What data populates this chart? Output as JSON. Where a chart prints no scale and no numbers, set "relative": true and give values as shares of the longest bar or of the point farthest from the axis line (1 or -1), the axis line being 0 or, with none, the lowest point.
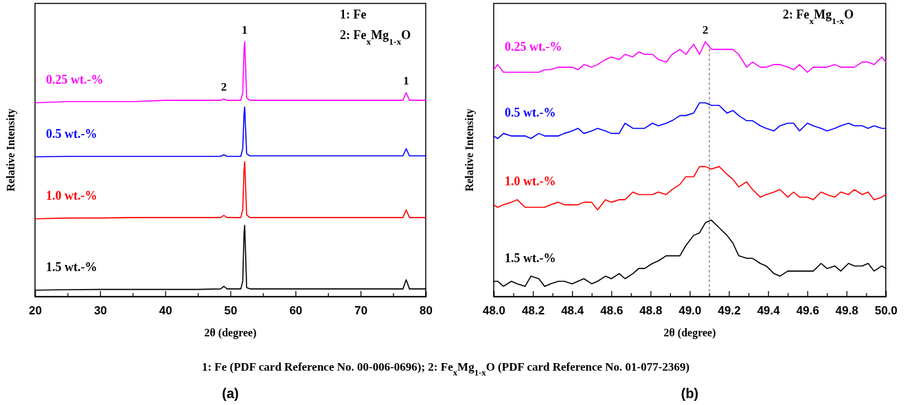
{
  "chart_data": [
    {
      "type": "line",
      "title": "(a)",
      "subtitle": "1: Fe (PDF card Reference No. 00-006-0696); 2: Fe$_{x}$Mg$_{1-x}$O (PDF card Reference No. 01-077-2369)",
      "xlabel": "2θ (degree)",
      "ylabel": "Relative Intensity",
      "relative": true,
      "x": [
        20,
        25,
        30,
        35,
        40,
        45,
        48.5,
        49,
        49.5,
        51.6,
        51.9,
        52.1,
        52.2,
        52.3,
        52.5,
        53,
        60,
        65,
        70,
        75,
        76.5,
        77,
        77.5,
        80
      ],
      "xlim": [
        20,
        80
      ],
      "xticks": [
        20,
        {
          "value": 25,
          "label": null
        },
        30,
        {
          "value": 35,
          "label": null
        },
        40,
        {
          "value": 45,
          "label": null
        },
        50,
        {
          "value": 55,
          "label": null
        },
        60,
        {
          "value": 65,
          "label": null
        },
        70,
        {
          "value": 75,
          "label": null
        },
        80
      ],
      "series": [
        {
          "name": "0.25 wt.-%",
          "color": "#ff00ff",
          "values": [
            0.76,
            0.765,
            0.765,
            0.765,
            0.77,
            0.77,
            0.77,
            0.775,
            0.77,
            0.77,
            0.8,
            0.97,
            1,
            0.93,
            0.78,
            0.77,
            0.77,
            0.77,
            0.77,
            0.77,
            0.77,
            0.8,
            0.77,
            0.77
          ]
        },
        {
          "name": "0.5 wt.-%",
          "color": "#0000ff",
          "values": [
            0.548,
            0.55,
            0.55,
            0.55,
            0.55,
            0.55,
            0.55,
            0.556,
            0.55,
            0.55,
            0.58,
            0.72,
            0.744,
            0.68,
            0.56,
            0.552,
            0.552,
            0.552,
            0.552,
            0.552,
            0.552,
            0.58,
            0.552,
            0.552
          ]
        },
        {
          "name": "1.0 wt.-%",
          "color": "#ff0000",
          "values": [
            0.305,
            0.308,
            0.308,
            0.31,
            0.31,
            0.31,
            0.31,
            0.318,
            0.31,
            0.31,
            0.34,
            0.5,
            0.53,
            0.46,
            0.32,
            0.31,
            0.31,
            0.31,
            0.31,
            0.31,
            0.31,
            0.34,
            0.31,
            0.31
          ]
        },
        {
          "name": "1.5 wt.-%",
          "color": "#000000",
          "values": [
            0.025,
            0.027,
            0.028,
            0.028,
            0.028,
            0.028,
            0.03,
            0.04,
            0.03,
            0.03,
            0.06,
            0.25,
            0.279,
            0.2,
            0.035,
            0.03,
            0.03,
            0.03,
            0.03,
            0.03,
            0.03,
            0.066,
            0.03,
            0.03
          ]
        }
      ],
      "annotations": [
        {
          "text": "1",
          "x": 52.2,
          "y": 1
        },
        {
          "text": "2",
          "x": 49,
          "y": 0.775
        },
        {
          "text": "1",
          "x": 77,
          "y": 0.8
        },
        "1: Fe",
        "2: Fe$_{x}$Mg$_{1-x}$O"
      ]
    },
    {
      "type": "line",
      "title": "(b)",
      "xlabel": "2θ (degree)",
      "ylabel": "Relative Intensity",
      "relative": true,
      "x": [
        48.0,
        48.02,
        48.05,
        48.09,
        48.12,
        48.16,
        48.19,
        48.23,
        48.26,
        48.29,
        48.33,
        48.36,
        48.4,
        48.43,
        48.46,
        48.5,
        48.53,
        48.57,
        48.6,
        48.64,
        48.67,
        48.71,
        48.74,
        48.77,
        48.81,
        48.84,
        48.88,
        48.91,
        48.95,
        48.98,
        49.02,
        49.05,
        49.08,
        49.11,
        49.15,
        49.19,
        49.22,
        49.25,
        49.29,
        49.32,
        49.36,
        49.39,
        49.43,
        49.46,
        49.5,
        49.53,
        49.56,
        49.6,
        49.63,
        49.67,
        49.7,
        49.74,
        49.77,
        49.81,
        49.84,
        49.88,
        49.91,
        49.94,
        49.98,
        50.0
      ],
      "xlim": [
        48,
        50
      ],
      "xticks": [
        {
          "value": 48,
          "label": "48.0"
        },
        {
          "value": 48.1,
          "label": null
        },
        48.2,
        {
          "value": 48.3,
          "label": null
        },
        48.4,
        {
          "value": 48.5,
          "label": null
        },
        48.6,
        {
          "value": 48.7,
          "label": null
        },
        48.8,
        {
          "value": 48.9,
          "label": null
        },
        {
          "value": 49,
          "label": "49.0"
        },
        {
          "value": 49.1,
          "label": null
        },
        49.2,
        {
          "value": 49.3,
          "label": null
        },
        49.4,
        {
          "value": 49.5,
          "label": null
        },
        49.6,
        {
          "value": 49.7,
          "label": null
        },
        49.8,
        {
          "value": 49.9,
          "label": null
        },
        {
          "value": 50,
          "label": "50.0"
        }
      ],
      "series": [
        {
          "name": "0.25 wt.-%",
          "color": "#ff00ff",
          "values": [
            0.89,
            0.91,
            0.88,
            0.88,
            0.88,
            0.88,
            0.88,
            0.88,
            0.89,
            0.89,
            0.9,
            0.9,
            0.9,
            0.89,
            0.91,
            0.9,
            0.91,
            0.93,
            0.94,
            0.93,
            0.95,
            0.94,
            0.96,
            0.95,
            0.95,
            0.93,
            0.92,
            0.95,
            0.97,
            0.95,
            0.99,
            0.95,
            1,
            0.97,
            0.97,
            0.97,
            0.97,
            0.95,
            0.9,
            0.92,
            0.9,
            0.9,
            0.91,
            0.91,
            0.9,
            0.89,
            0.91,
            0.88,
            0.9,
            0.9,
            0.9,
            0.91,
            0.9,
            0.9,
            0.9,
            0.92,
            0.92,
            0.91,
            0.94,
            0.92
          ]
        },
        {
          "name": "0.5 wt.-%",
          "color": "#0000ff",
          "values": [
            0.63,
            0.62,
            0.64,
            0.63,
            0.63,
            0.63,
            0.62,
            0.64,
            0.63,
            0.63,
            0.63,
            0.64,
            0.65,
            0.66,
            0.64,
            0.65,
            0.66,
            0.65,
            0.64,
            0.64,
            0.68,
            0.66,
            0.66,
            0.66,
            0.68,
            0.67,
            0.68,
            0.69,
            0.71,
            0.71,
            0.72,
            0.76,
            0.76,
            0.75,
            0.75,
            0.72,
            0.73,
            0.71,
            0.69,
            0.69,
            0.67,
            0.66,
            0.65,
            0.67,
            0.68,
            0.68,
            0.65,
            0.68,
            0.67,
            0.66,
            0.65,
            0.66,
            0.67,
            0.68,
            0.67,
            0.67,
            0.66,
            0.67,
            0.66,
            0.66
          ]
        },
        {
          "name": "1.0 wt.-%",
          "color": "#ff0000",
          "values": [
            0.36,
            0.35,
            0.36,
            0.37,
            0.38,
            0.35,
            0.35,
            0.35,
            0.35,
            0.36,
            0.37,
            0.36,
            0.36,
            0.36,
            0.37,
            0.37,
            0.34,
            0.38,
            0.37,
            0.38,
            0.38,
            0.41,
            0.4,
            0.4,
            0.4,
            0.41,
            0.4,
            0.42,
            0.44,
            0.47,
            0.47,
            0.51,
            0.51,
            0.5,
            0.51,
            0.48,
            0.46,
            0.43,
            0.45,
            0.42,
            0.39,
            0.4,
            0.41,
            0.42,
            0.39,
            0.41,
            0.39,
            0.39,
            0.38,
            0.41,
            0.4,
            0.39,
            0.41,
            0.4,
            0.42,
            0.4,
            0.41,
            0.38,
            0.39,
            0.4
          ]
        },
        {
          "name": "1.5 wt.-%",
          "color": "#000000",
          "values": [
            0.06,
            0.06,
            0.04,
            0.06,
            0.05,
            0.04,
            0.08,
            0.07,
            0.04,
            0.05,
            0.06,
            0.06,
            0.05,
            0.06,
            0.07,
            0.05,
            0.06,
            0.08,
            0.07,
            0.09,
            0.07,
            0.09,
            0.11,
            0.11,
            0.13,
            0.14,
            0.16,
            0.16,
            0.16,
            0.2,
            0.24,
            0.25,
            0.29,
            0.3,
            0.27,
            0.24,
            0.21,
            0.16,
            0.15,
            0.15,
            0.13,
            0.12,
            0.09,
            0.08,
            0.1,
            0.1,
            0.1,
            0.1,
            0.1,
            0.13,
            0.11,
            0.12,
            0.1,
            0.13,
            0.12,
            0.12,
            0.13,
            0.1,
            0.12,
            0.11
          ]
        }
      ],
      "ref_lines": [
        {
          "axis": "x",
          "value": 49.1,
          "color": "#555555",
          "line_style": "dashed"
        }
      ],
      "annotations": [
        {
          "text": "2",
          "x": 49.08,
          "y": 1
        },
        "2: Fe$_{x}$Mg$_{1-x}$O"
      ]
    }
  ]
}
